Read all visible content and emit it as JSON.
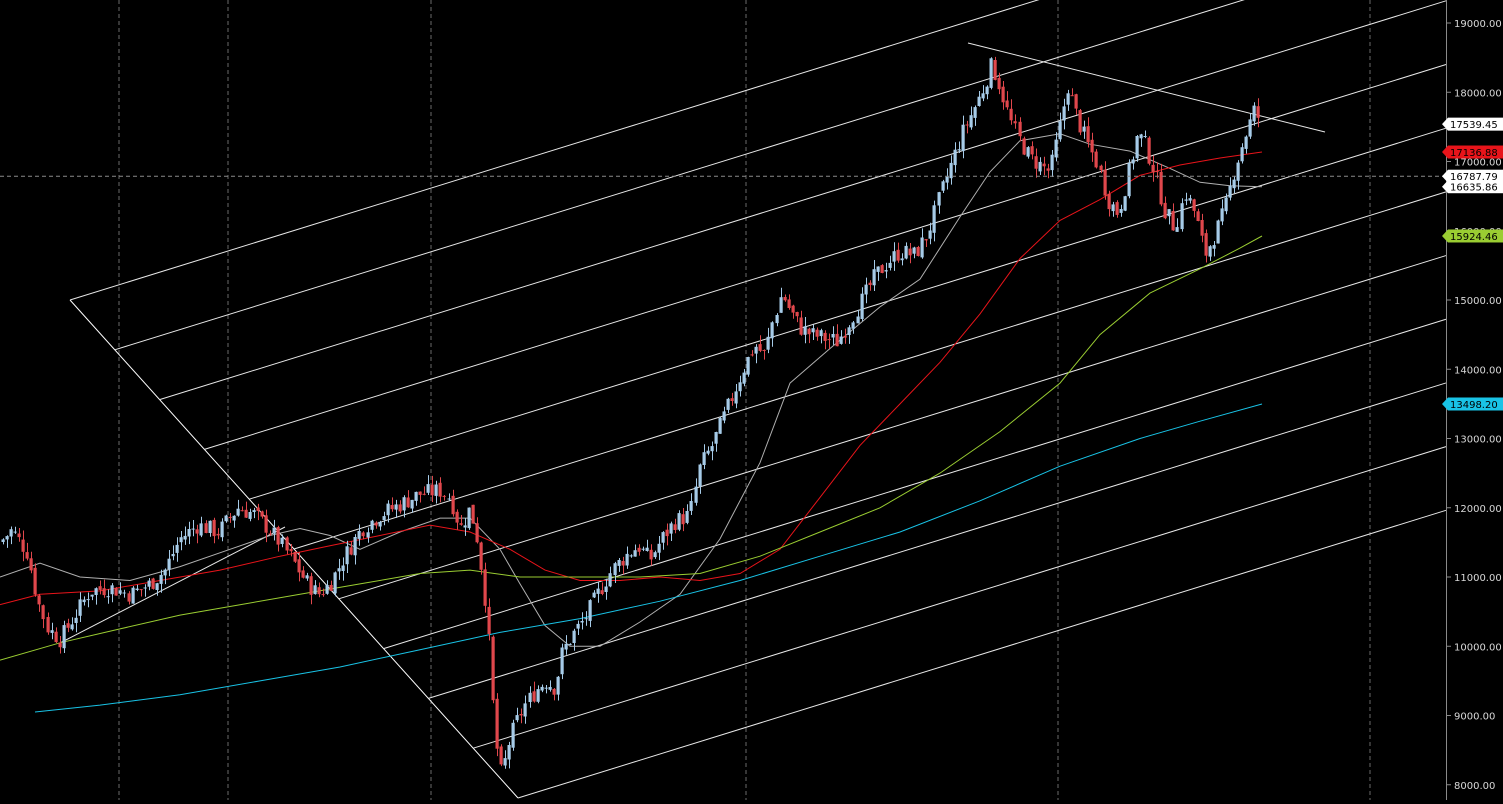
{
  "chart_data": {
    "type": "candlestick",
    "title": "",
    "xlabel": "",
    "ylabel": "",
    "ylim": [
      7800,
      19250
    ],
    "grid": true,
    "y_ticks": [
      "8000.00",
      "9000.00",
      "10000.00",
      "11000.00",
      "12000.00",
      "13000.00",
      "14000.00",
      "15000.00",
      "16000.00",
      "17000.00",
      "18000.00",
      "19000.00"
    ],
    "y_tick_values": [
      8000,
      9000,
      10000,
      11000,
      12000,
      13000,
      14000,
      15000,
      16000,
      17000,
      18000,
      19000
    ],
    "crosshair_price": 16787.79,
    "price_tags": [
      {
        "label": "17539.45",
        "value": 17539.45,
        "bg": "#ffffff",
        "fg": "#000000"
      },
      {
        "label": "17136.88",
        "value": 17136.88,
        "bg": "#e8141a",
        "fg": "#000000"
      },
      {
        "label": "16787.79",
        "value": 16787.79,
        "bg": "#ffffff",
        "fg": "#000000"
      },
      {
        "label": "16635.86",
        "value": 16635.86,
        "bg": "#ffffff",
        "fg": "#000000"
      },
      {
        "label": "15924.46",
        "value": 15924.46,
        "bg": "#9acd32",
        "fg": "#000000"
      },
      {
        "label": "13498.20",
        "value": 13498.2,
        "bg": "#19c3e6",
        "fg": "#000000"
      }
    ],
    "candle_up_color": "#a6cbe8",
    "candle_down_color": "#e0474c",
    "moving_averages": [
      {
        "color": "#b0b0b0",
        "current": 16635.86
      },
      {
        "color": "#e8141a",
        "current": 17136.88
      },
      {
        "color": "#9acd32",
        "current": 15924.46
      },
      {
        "color": "#19c3e6",
        "current": 13498.2
      }
    ],
    "price_path": [
      [
        0,
        11500
      ],
      [
        12,
        11680
      ],
      [
        28,
        11350
      ],
      [
        38,
        10650
      ],
      [
        48,
        10250
      ],
      [
        60,
        10100
      ],
      [
        75,
        10450
      ],
      [
        90,
        10800
      ],
      [
        110,
        10850
      ],
      [
        130,
        10750
      ],
      [
        150,
        10900
      ],
      [
        165,
        11100
      ],
      [
        180,
        11550
      ],
      [
        198,
        11750
      ],
      [
        218,
        11650
      ],
      [
        238,
        12000
      ],
      [
        255,
        11900
      ],
      [
        272,
        11650
      ],
      [
        290,
        11300
      ],
      [
        305,
        10950
      ],
      [
        318,
        10750
      ],
      [
        330,
        10900
      ],
      [
        345,
        11300
      ],
      [
        362,
        11700
      ],
      [
        380,
        11900
      ],
      [
        400,
        12050
      ],
      [
        420,
        12200
      ],
      [
        440,
        12250
      ],
      [
        450,
        12150
      ],
      [
        460,
        11700
      ],
      [
        470,
        12000
      ],
      [
        478,
        11500
      ],
      [
        485,
        10700
      ],
      [
        490,
        9900
      ],
      [
        495,
        8700
      ],
      [
        502,
        8100
      ],
      [
        508,
        8550
      ],
      [
        515,
        8850
      ],
      [
        525,
        9150
      ],
      [
        535,
        9350
      ],
      [
        545,
        9500
      ],
      [
        555,
        9400
      ],
      [
        562,
        9900
      ],
      [
        572,
        10150
      ],
      [
        585,
        10400
      ],
      [
        598,
        10750
      ],
      [
        612,
        11100
      ],
      [
        625,
        11300
      ],
      [
        638,
        11450
      ],
      [
        650,
        11250
      ],
      [
        662,
        11550
      ],
      [
        675,
        11800
      ],
      [
        690,
        11900
      ],
      [
        700,
        12600
      ],
      [
        712,
        12900
      ],
      [
        722,
        13250
      ],
      [
        735,
        13700
      ],
      [
        745,
        14050
      ],
      [
        755,
        14350
      ],
      [
        765,
        14200
      ],
      [
        772,
        14650
      ],
      [
        782,
        15100
      ],
      [
        790,
        14850
      ],
      [
        800,
        14600
      ],
      [
        812,
        14500
      ],
      [
        825,
        14450
      ],
      [
        838,
        14400
      ],
      [
        850,
        14700
      ],
      [
        862,
        15000
      ],
      [
        875,
        15350
      ],
      [
        888,
        15550
      ],
      [
        900,
        15700
      ],
      [
        915,
        15650
      ],
      [
        928,
        15950
      ],
      [
        940,
        16500
      ],
      [
        952,
        17000
      ],
      [
        962,
        17400
      ],
      [
        972,
        17700
      ],
      [
        982,
        18000
      ],
      [
        992,
        18400
      ],
      [
        1000,
        18100
      ],
      [
        1010,
        17600
      ],
      [
        1020,
        17300
      ],
      [
        1030,
        17050
      ],
      [
        1040,
        16950
      ],
      [
        1050,
        16850
      ],
      [
        1060,
        17500
      ],
      [
        1068,
        18100
      ],
      [
        1078,
        17600
      ],
      [
        1088,
        17250
      ],
      [
        1098,
        16950
      ],
      [
        1108,
        16450
      ],
      [
        1118,
        16250
      ],
      [
        1128,
        16800
      ],
      [
        1138,
        17400
      ],
      [
        1145,
        17250
      ],
      [
        1155,
        16850
      ],
      [
        1165,
        16300
      ],
      [
        1175,
        16050
      ],
      [
        1185,
        16550
      ],
      [
        1195,
        16250
      ],
      [
        1205,
        15650
      ],
      [
        1215,
        15950
      ],
      [
        1225,
        16300
      ],
      [
        1235,
        16900
      ],
      [
        1245,
        17350
      ],
      [
        1255,
        17750
      ],
      [
        1262,
        17539.45
      ]
    ],
    "ma_series": [
      {
        "color": "#b0b0b0",
        "points": [
          [
            0,
            11000
          ],
          [
            40,
            11200
          ],
          [
            80,
            11000
          ],
          [
            130,
            10950
          ],
          [
            180,
            11150
          ],
          [
            230,
            11400
          ],
          [
            270,
            11600
          ],
          [
            300,
            11700
          ],
          [
            330,
            11600
          ],
          [
            360,
            11400
          ],
          [
            400,
            11650
          ],
          [
            440,
            11850
          ],
          [
            470,
            11850
          ],
          [
            500,
            11400
          ],
          [
            520,
            10900
          ],
          [
            545,
            10300
          ],
          [
            570,
            10000
          ],
          [
            600,
            10000
          ],
          [
            640,
            10350
          ],
          [
            680,
            10750
          ],
          [
            720,
            11550
          ],
          [
            760,
            12650
          ],
          [
            790,
            13800
          ],
          [
            830,
            14300
          ],
          [
            880,
            14900
          ],
          [
            920,
            15300
          ],
          [
            960,
            16200
          ],
          [
            990,
            16850
          ],
          [
            1020,
            17300
          ],
          [
            1060,
            17400
          ],
          [
            1090,
            17250
          ],
          [
            1130,
            17150
          ],
          [
            1170,
            16900
          ],
          [
            1200,
            16700
          ],
          [
            1230,
            16650
          ],
          [
            1262,
            16635.86
          ]
        ]
      },
      {
        "color": "#e8141a",
        "points": [
          [
            0,
            10600
          ],
          [
            40,
            10750
          ],
          [
            100,
            10800
          ],
          [
            160,
            10950
          ],
          [
            220,
            11100
          ],
          [
            280,
            11300
          ],
          [
            330,
            11450
          ],
          [
            380,
            11600
          ],
          [
            430,
            11750
          ],
          [
            470,
            11650
          ],
          [
            510,
            11400
          ],
          [
            545,
            11100
          ],
          [
            580,
            10950
          ],
          [
            620,
            10950
          ],
          [
            660,
            11000
          ],
          [
            700,
            10950
          ],
          [
            740,
            11050
          ],
          [
            780,
            11400
          ],
          [
            820,
            12150
          ],
          [
            860,
            12900
          ],
          [
            900,
            13500
          ],
          [
            940,
            14100
          ],
          [
            980,
            14800
          ],
          [
            1020,
            15600
          ],
          [
            1060,
            16150
          ],
          [
            1100,
            16450
          ],
          [
            1140,
            16800
          ],
          [
            1180,
            16950
          ],
          [
            1220,
            17050
          ],
          [
            1262,
            17136.88
          ]
        ]
      },
      {
        "color": "#9acd32",
        "points": [
          [
            0,
            9800
          ],
          [
            60,
            10050
          ],
          [
            120,
            10250
          ],
          [
            180,
            10450
          ],
          [
            240,
            10600
          ],
          [
            300,
            10750
          ],
          [
            360,
            10900
          ],
          [
            420,
            11050
          ],
          [
            470,
            11100
          ],
          [
            520,
            11000
          ],
          [
            580,
            11000
          ],
          [
            640,
            11000
          ],
          [
            700,
            11050
          ],
          [
            760,
            11300
          ],
          [
            820,
            11650
          ],
          [
            880,
            12000
          ],
          [
            940,
            12500
          ],
          [
            1000,
            13100
          ],
          [
            1060,
            13800
          ],
          [
            1100,
            14500
          ],
          [
            1150,
            15100
          ],
          [
            1200,
            15450
          ],
          [
            1240,
            15750
          ],
          [
            1262,
            15924.46
          ]
        ]
      },
      {
        "color": "#19c3e6",
        "points": [
          [
            35,
            9050
          ],
          [
            100,
            9150
          ],
          [
            180,
            9300
          ],
          [
            260,
            9500
          ],
          [
            340,
            9700
          ],
          [
            420,
            9950
          ],
          [
            500,
            10200
          ],
          [
            580,
            10400
          ],
          [
            660,
            10650
          ],
          [
            740,
            10950
          ],
          [
            820,
            11300
          ],
          [
            900,
            11650
          ],
          [
            980,
            12100
          ],
          [
            1060,
            12600
          ],
          [
            1140,
            13000
          ],
          [
            1200,
            13250
          ],
          [
            1262,
            13498.2
          ]
        ]
      }
    ]
  }
}
